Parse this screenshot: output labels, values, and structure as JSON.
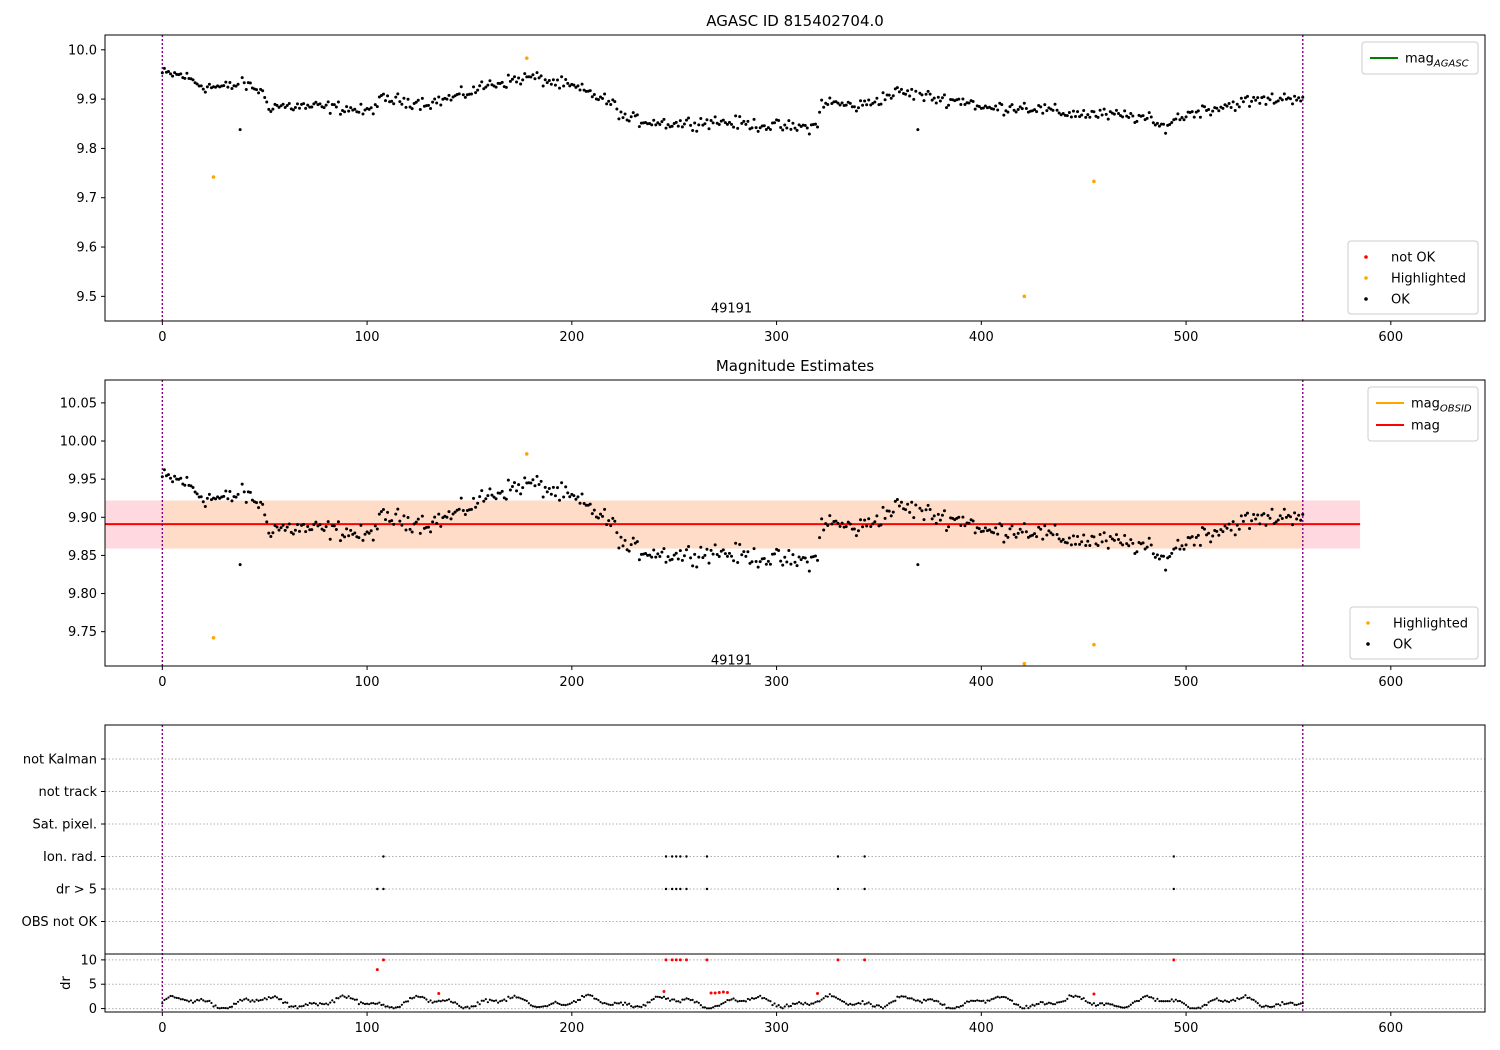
{
  "figure": {
    "width": 1500,
    "height": 1050
  },
  "chart_data": [
    {
      "type": "scatter",
      "title": "AGASC ID 815402704.0",
      "xlim": [
        -28,
        646
      ],
      "ylim": [
        9.45,
        10.03
      ],
      "xticks": [
        0,
        100,
        200,
        300,
        400,
        500,
        600
      ],
      "yticks": [
        9.5,
        9.6,
        9.7,
        9.8,
        9.9,
        10.0
      ],
      "ytick_decimals": 1,
      "vlines": [
        0,
        557
      ],
      "annotation": {
        "text": "49191",
        "x": 278,
        "y": 9.475
      },
      "legend_top": {
        "location": "top-right",
        "entries": [
          {
            "label": "mag",
            "sub": "AGASC",
            "color": "#008000"
          }
        ]
      },
      "legend_bottom": {
        "location": "bottom-right",
        "entries": [
          {
            "label": "not OK",
            "color": "#ff0000"
          },
          {
            "label": "Highlighted",
            "color": "#ffa500"
          },
          {
            "label": "OK",
            "color": "#000000"
          }
        ]
      },
      "highlighted": [
        [
          25,
          9.742
        ],
        [
          178,
          9.983
        ],
        [
          421,
          9.5
        ],
        [
          455,
          9.733
        ]
      ]
    },
    {
      "type": "scatter",
      "title": "Magnitude Estimates",
      "xlim": [
        -28,
        646
      ],
      "ylim": [
        9.705,
        10.08
      ],
      "xticks": [
        0,
        100,
        200,
        300,
        400,
        500,
        600
      ],
      "yticks": [
        9.75,
        9.8,
        9.85,
        9.9,
        9.95,
        10.0,
        10.05
      ],
      "ytick_decimals": 2,
      "vlines": [
        0,
        557
      ],
      "annotation": {
        "text": "49191",
        "x": 278,
        "y": 9.712
      },
      "mag_line": {
        "value": 9.891,
        "x_range": [
          -28,
          585
        ],
        "band": [
          9.859,
          9.922
        ],
        "color": "#ff0000"
      },
      "obsid_band": {
        "x_range": [
          0,
          557
        ],
        "band": [
          9.859,
          9.922
        ]
      },
      "legend_top": {
        "location": "top-right",
        "entries": [
          {
            "label": "mag",
            "sub": "OBSID",
            "color": "#ffa500"
          },
          {
            "label": "mag",
            "sub": "",
            "color": "#ff0000"
          }
        ]
      },
      "legend_bottom": {
        "location": "bottom-right",
        "entries": [
          {
            "label": "Highlighted",
            "color": "#ffa500"
          },
          {
            "label": "OK",
            "color": "#000000"
          }
        ]
      },
      "highlighted": [
        [
          25,
          9.742
        ],
        [
          178,
          9.983
        ],
        [
          455,
          9.733
        ],
        [
          421,
          9.708
        ]
      ]
    },
    {
      "type": "scatter",
      "title": "",
      "xlim": [
        -28,
        646
      ],
      "xticks": [
        0,
        100,
        200,
        300,
        400,
        500,
        600
      ],
      "vlines": [
        0,
        557
      ],
      "flag_rows": [
        "not Kalman",
        "not track",
        "Sat. pixel.",
        "Ion. rad.",
        "dr > 5",
        "OBS not OK"
      ],
      "flags": {
        "Ion. rad.": [
          108,
          246,
          249,
          251,
          253,
          256,
          266,
          330,
          343,
          494
        ],
        "dr > 5": [
          105,
          108,
          246,
          249,
          251,
          253,
          256,
          266,
          330,
          343,
          494
        ]
      },
      "dr_ylabel": "dr",
      "dr_ylim": [
        -0.5,
        11
      ],
      "dr_yticks": [
        0,
        5,
        10
      ],
      "dr_red": [
        [
          105,
          8
        ],
        [
          108,
          10
        ],
        [
          135,
          3.1
        ],
        [
          245,
          3.5
        ],
        [
          246,
          10
        ],
        [
          249,
          10
        ],
        [
          251,
          10
        ],
        [
          253,
          10
        ],
        [
          256,
          10
        ],
        [
          266,
          10
        ],
        [
          268,
          3.2
        ],
        [
          270,
          3.2
        ],
        [
          272,
          3.3
        ],
        [
          274,
          3.4
        ],
        [
          276,
          3.3
        ],
        [
          320,
          3.1
        ],
        [
          330,
          10
        ],
        [
          343,
          10
        ],
        [
          455,
          3
        ],
        [
          494,
          10
        ]
      ]
    }
  ]
}
